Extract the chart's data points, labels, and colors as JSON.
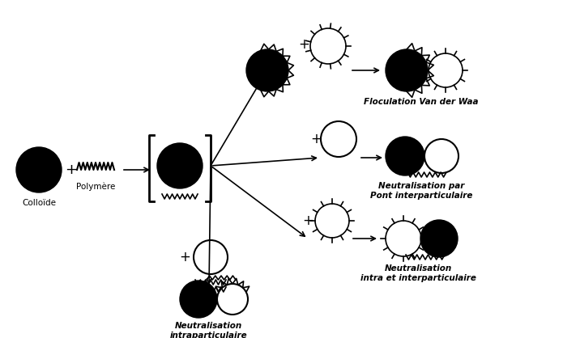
{
  "bg_color": "#ffffff",
  "font_size_label": 7.5,
  "label_colloide": "Colloïde",
  "label_polymere": "Polymère",
  "label_floculation": "Floculation Van der Waa",
  "label_neutralisation_pont": "Neutralisation par\nPont interparticulaire",
  "label_neutralisation_intra": "Neutralisation\nintra et interparticulaire",
  "label_neutralisation_intrapart": "Neutralisation\nintraparticulaire"
}
